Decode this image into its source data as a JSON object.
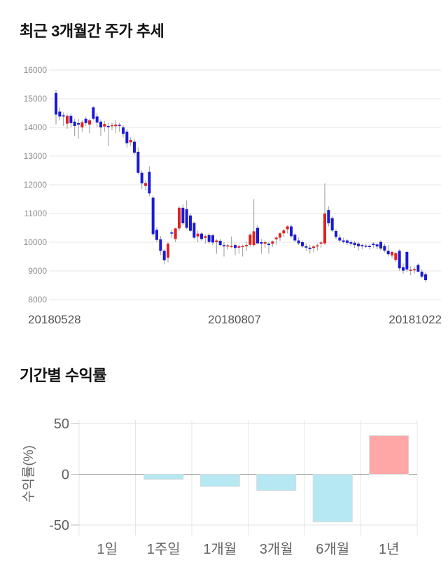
{
  "titles": {
    "price": "최근 3개월간 주가 추세",
    "returns": "기간별 수익률"
  },
  "chart_data": [
    {
      "type": "candlestick",
      "title": "최근 3개월간 주가 추세",
      "ylim": [
        8000,
        16000
      ],
      "y_ticks": [
        16000,
        15000,
        14000,
        13000,
        12000,
        11000,
        10000,
        9000,
        8000
      ],
      "x_labels": [
        "20180528",
        "20180807",
        "20181022"
      ],
      "grid": true,
      "up_color": "#e32020",
      "down_color": "#1a1ad6",
      "wick_color": "#9a9a9a",
      "candles_format": [
        "open",
        "high",
        "low",
        "close"
      ],
      "candles": [
        [
          15200,
          15300,
          14100,
          14450
        ],
        [
          14550,
          14700,
          14250,
          14380
        ],
        [
          14420,
          14520,
          14050,
          14400
        ],
        [
          14130,
          14450,
          13950,
          14400
        ],
        [
          14400,
          14480,
          14000,
          14150
        ],
        [
          14200,
          14300,
          13700,
          14050
        ],
        [
          14150,
          14300,
          13600,
          14100
        ],
        [
          14000,
          14250,
          13850,
          14180
        ],
        [
          14300,
          14380,
          14050,
          14150
        ],
        [
          14100,
          14300,
          13800,
          14250
        ],
        [
          14700,
          14730,
          14250,
          14300
        ],
        [
          14380,
          14500,
          14000,
          14170
        ],
        [
          14200,
          14280,
          13700,
          14000
        ],
        [
          14030,
          14220,
          13850,
          14120
        ],
        [
          14050,
          14150,
          13350,
          14040
        ],
        [
          14060,
          14160,
          13900,
          14080
        ],
        [
          14040,
          14250,
          13800,
          14100
        ],
        [
          14090,
          14160,
          13850,
          14060
        ],
        [
          14000,
          14080,
          13650,
          13780
        ],
        [
          13850,
          13950,
          13300,
          13450
        ],
        [
          13480,
          13650,
          13350,
          13560
        ],
        [
          13500,
          13600,
          13050,
          13120
        ],
        [
          13150,
          13300,
          12350,
          12420
        ],
        [
          12420,
          12500,
          11850,
          12050
        ],
        [
          11960,
          12150,
          11800,
          12060
        ],
        [
          12450,
          12650,
          11600,
          11700
        ],
        [
          11550,
          11620,
          10200,
          10280
        ],
        [
          10430,
          10520,
          10000,
          10080
        ],
        [
          10100,
          10220,
          9550,
          9700
        ],
        [
          9700,
          9760,
          9230,
          9370
        ],
        [
          9460,
          10000,
          9300,
          9950
        ],
        [
          10340,
          10430,
          10150,
          10330
        ],
        [
          10110,
          10500,
          10000,
          10480
        ],
        [
          10480,
          11250,
          10400,
          11200
        ],
        [
          11200,
          11320,
          10600,
          10660
        ],
        [
          11150,
          11450,
          10450,
          10500
        ],
        [
          10930,
          11000,
          10350,
          10400
        ],
        [
          10670,
          10720,
          10100,
          10160
        ],
        [
          10200,
          10400,
          10000,
          10300
        ],
        [
          10300,
          10360,
          10050,
          10110
        ],
        [
          10150,
          10260,
          9950,
          10210
        ],
        [
          10250,
          10310,
          9950,
          10010
        ],
        [
          10240,
          10300,
          9900,
          9990
        ],
        [
          10000,
          10110,
          9600,
          10060
        ],
        [
          10050,
          10110,
          9850,
          9900
        ],
        [
          9900,
          10000,
          9500,
          9860
        ],
        [
          9850,
          9950,
          9740,
          9890
        ],
        [
          9860,
          10200,
          9790,
          9870
        ],
        [
          9900,
          9950,
          9550,
          9800
        ],
        [
          9810,
          9900,
          9600,
          9860
        ],
        [
          9850,
          9910,
          9500,
          9870
        ],
        [
          9870,
          10000,
          9700,
          9900
        ],
        [
          9910,
          10310,
          9850,
          10260
        ],
        [
          9900,
          11500,
          9840,
          10380
        ],
        [
          10500,
          10600,
          9940,
          9960
        ],
        [
          10000,
          10110,
          9600,
          9950
        ],
        [
          9950,
          10060,
          9800,
          10000
        ],
        [
          9950,
          10010,
          9600,
          9900
        ],
        [
          9950,
          10060,
          9840,
          10030
        ],
        [
          10100,
          10210,
          9900,
          10160
        ],
        [
          10160,
          10360,
          10050,
          10310
        ],
        [
          10310,
          10460,
          10200,
          10410
        ],
        [
          10450,
          10590,
          10300,
          10550
        ],
        [
          10550,
          10610,
          10150,
          10210
        ],
        [
          10260,
          10310,
          10000,
          10060
        ],
        [
          10060,
          10160,
          9900,
          9960
        ],
        [
          10000,
          10060,
          9800,
          9860
        ],
        [
          9860,
          9960,
          9700,
          9810
        ],
        [
          9810,
          9910,
          9600,
          9760
        ],
        [
          9800,
          9900,
          9650,
          9850
        ],
        [
          9850,
          9950,
          9700,
          9890
        ],
        [
          9950,
          10050,
          9800,
          9990
        ],
        [
          9960,
          12050,
          9900,
          11000
        ],
        [
          11120,
          11250,
          10550,
          10660
        ],
        [
          10840,
          10910,
          10350,
          10410
        ],
        [
          10390,
          10460,
          10100,
          10180
        ],
        [
          10160,
          10260,
          10000,
          10060
        ],
        [
          10060,
          10160,
          9950,
          10010
        ],
        [
          10060,
          10110,
          9900,
          9980
        ],
        [
          10000,
          10080,
          9850,
          9950
        ],
        [
          9980,
          10050,
          9800,
          9900
        ],
        [
          9950,
          10000,
          9700,
          9860
        ],
        [
          9900,
          9950,
          9750,
          9870
        ],
        [
          9880,
          9950,
          9800,
          9860
        ],
        [
          9870,
          9920,
          9750,
          9830
        ],
        [
          9950,
          10000,
          9800,
          9900
        ],
        [
          9920,
          9970,
          9750,
          9850
        ],
        [
          10010,
          10060,
          9700,
          9780
        ],
        [
          9870,
          9950,
          9650,
          9710
        ],
        [
          9700,
          9900,
          9500,
          9580
        ],
        [
          9540,
          9700,
          9450,
          9660
        ],
        [
          9380,
          9650,
          9300,
          9620
        ],
        [
          9700,
          9750,
          9000,
          9090
        ],
        [
          9130,
          9260,
          8900,
          9010
        ],
        [
          9660,
          9710,
          8950,
          9050
        ],
        [
          9030,
          9160,
          8850,
          9040
        ],
        [
          9050,
          9150,
          8900,
          9060
        ],
        [
          9210,
          9260,
          8950,
          8970
        ],
        [
          8970,
          9060,
          8750,
          8800
        ],
        [
          8880,
          8950,
          8600,
          8680
        ]
      ]
    },
    {
      "type": "bar",
      "title": "기간별 수익률",
      "ylabel": "수익률(%)",
      "categories": [
        "1일",
        "1주일",
        "1개월",
        "3개월",
        "6개월",
        "1년"
      ],
      "values": [
        0,
        -5,
        -12,
        -16,
        -47,
        38
      ],
      "y_ticks": [
        50,
        0,
        -50
      ],
      "ylim": [
        -55,
        55
      ],
      "grid": true,
      "legend": "none",
      "positive_color": "#ffa6a6",
      "negative_color": "#b5e8f2",
      "bar_border_color": "#d9d9d9"
    }
  ]
}
